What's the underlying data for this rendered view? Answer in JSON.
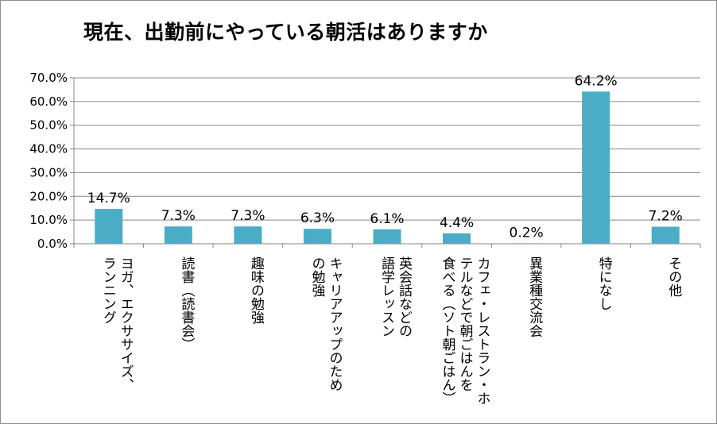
{
  "chart_data": {
    "type": "bar",
    "title": "現在、出勤前にやっている朝活はありますか",
    "categories": [
      [
        "ヨガ、エクササイズ、",
        "ランニング"
      ],
      [
        "読書（読書会）"
      ],
      [
        "趣味の勉強"
      ],
      [
        "キャリアアップのため",
        "の勉強"
      ],
      [
        "英会話などの",
        "語学レッスン"
      ],
      [
        "カフェ・レストラン・ホ",
        "テルなどで朝ごはんを",
        "食べる（ソト朝ごはん）"
      ],
      [
        "異業種交流会"
      ],
      [
        "特になし"
      ],
      [
        "その他"
      ]
    ],
    "values": [
      14.7,
      7.3,
      7.3,
      6.3,
      6.1,
      4.4,
      0.2,
      64.2,
      7.2
    ],
    "data_labels": [
      "14.7%",
      "7.3%",
      "7.3%",
      "6.3%",
      "6.1%",
      "4.4%",
      "0.2%",
      "64.2%",
      "7.2%"
    ],
    "y_ticks": [
      "0.0%",
      "10.0%",
      "20.0%",
      "30.0%",
      "40.0%",
      "50.0%",
      "60.0%",
      "70.0%"
    ],
    "ylim": [
      0,
      70
    ],
    "grid": true,
    "legend": "none",
    "bar_color": "#4bacc6",
    "grid_color": "#868686"
  }
}
